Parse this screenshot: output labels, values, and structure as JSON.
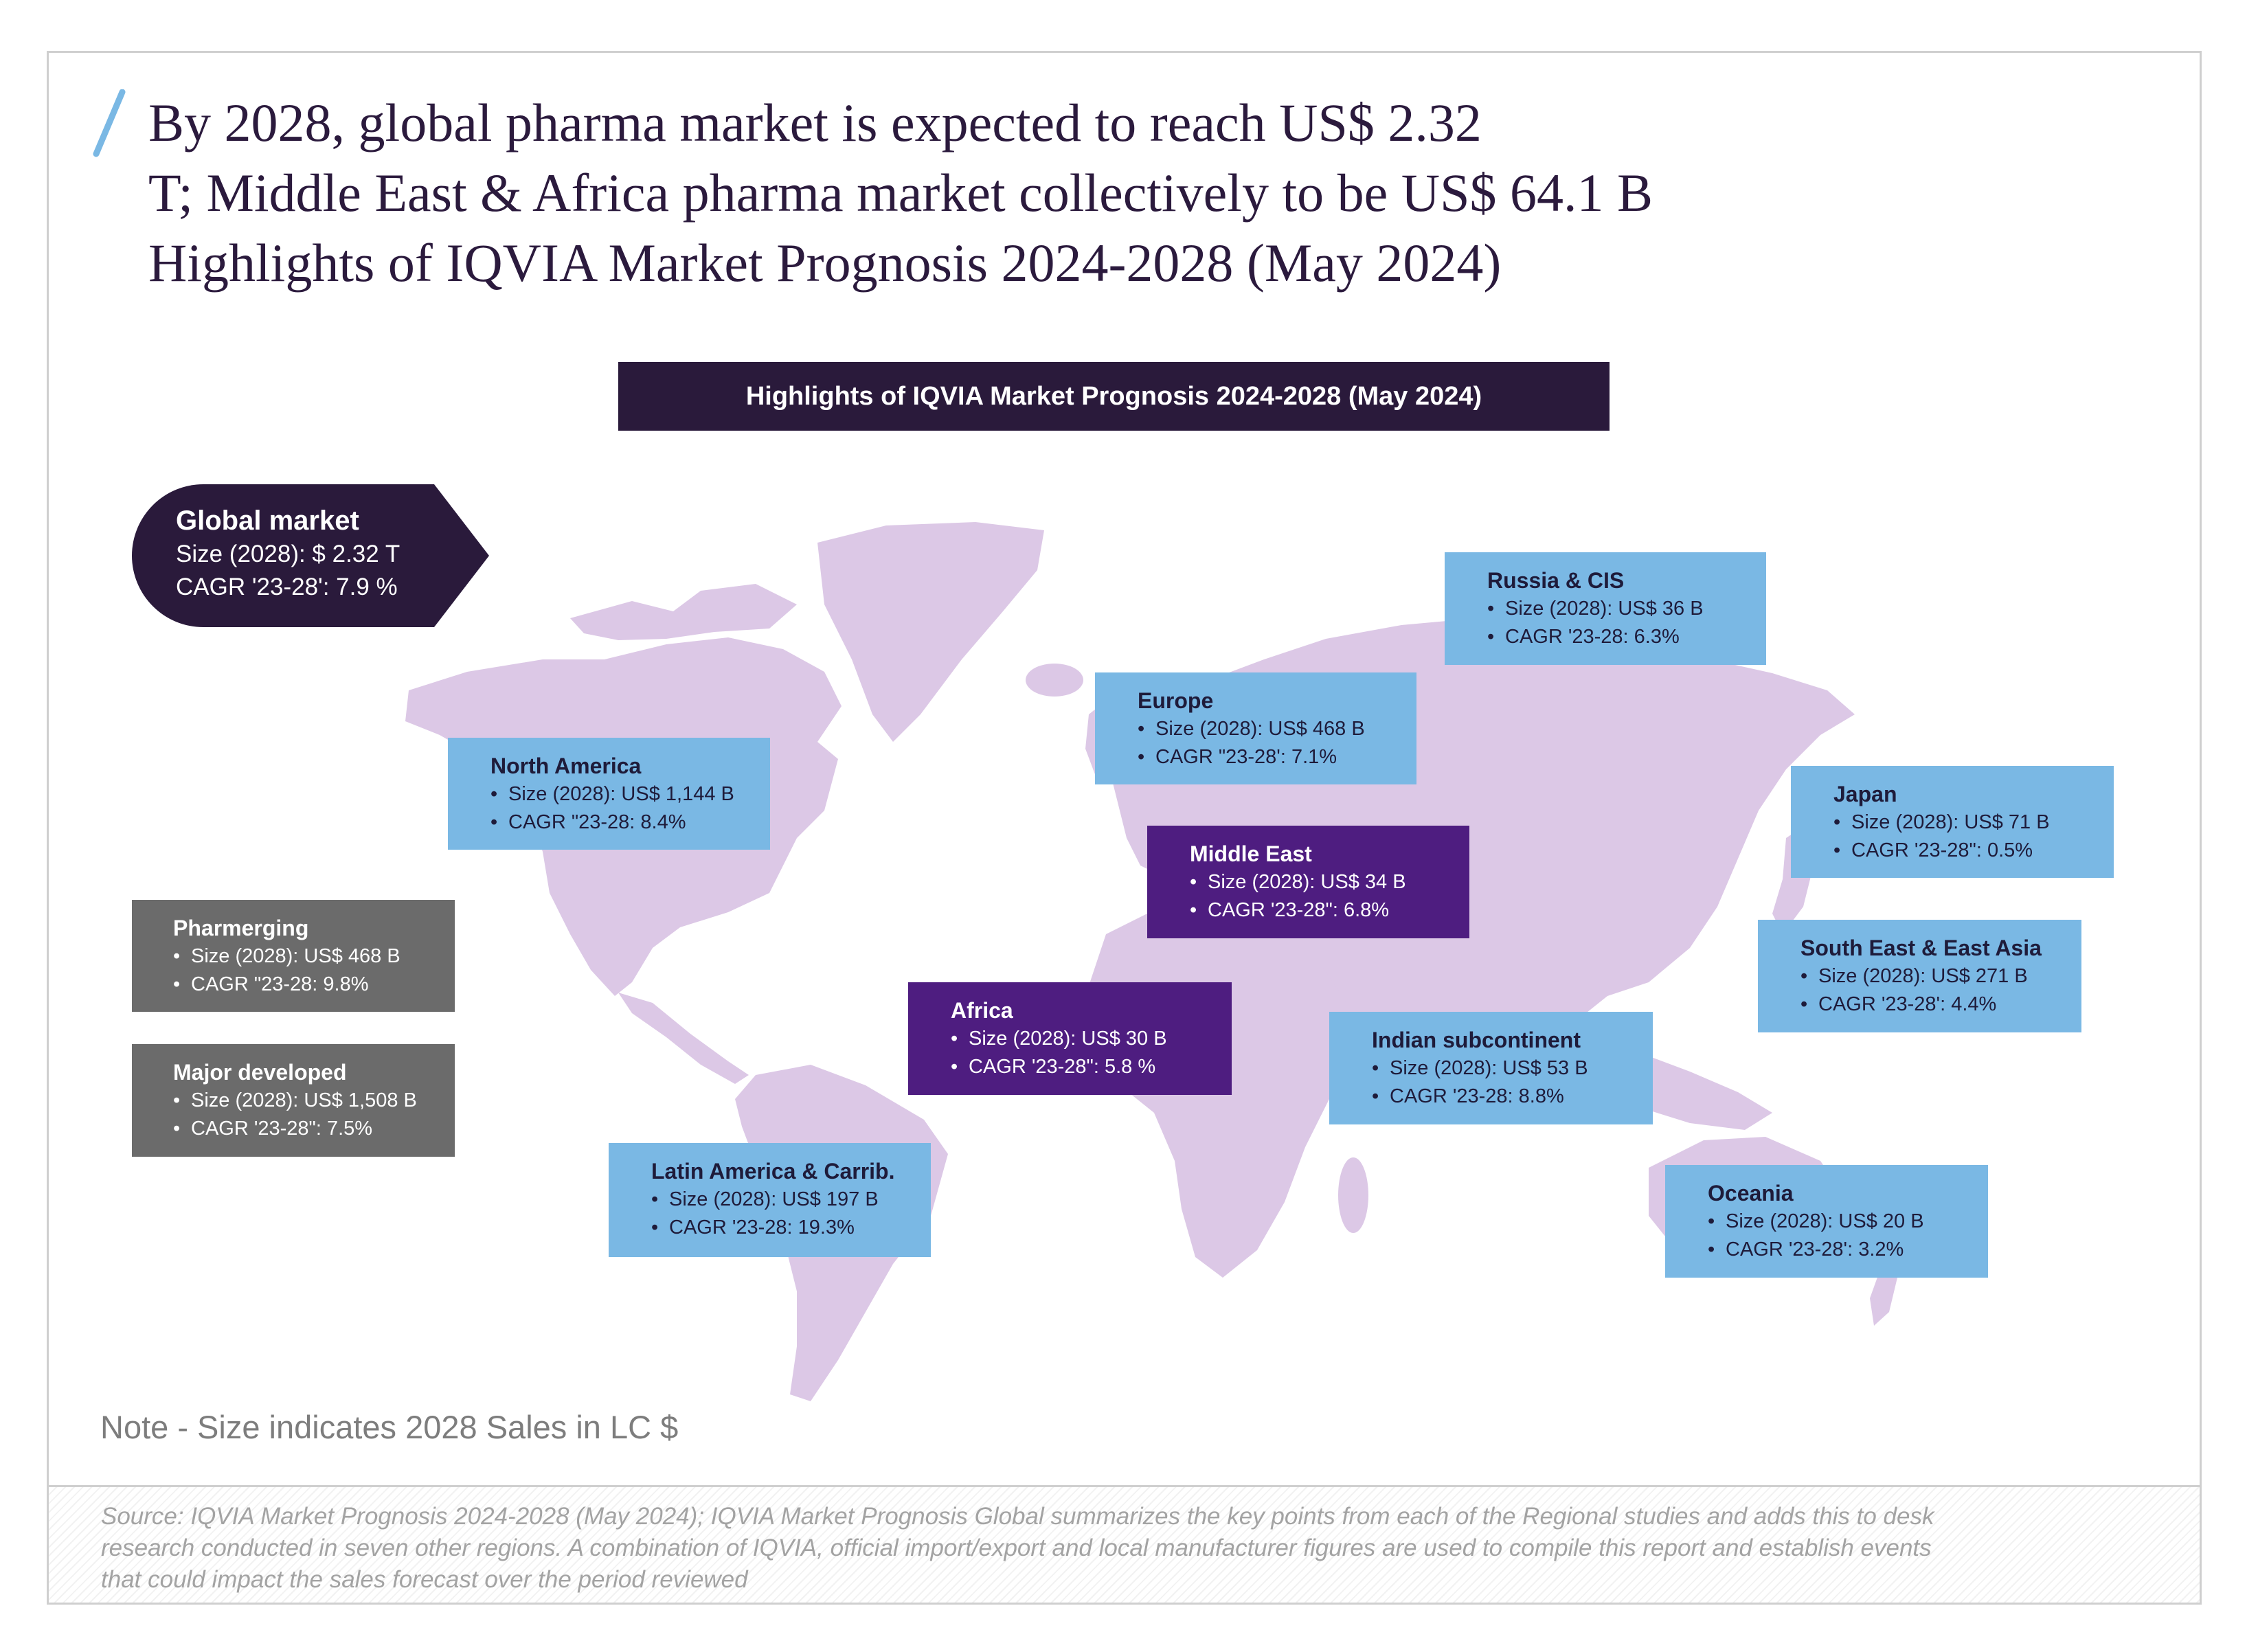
{
  "title": {
    "line1": "By 2028, global pharma market is expected to reach US$ 2.32",
    "line2": "T; Middle East & Africa pharma market collectively to be US$ 64.1 B",
    "line3": "Highlights of IQVIA Market Prognosis 2024-2028 (May 2024)"
  },
  "banner": "Highlights of IQVIA Market Prognosis 2024-2028 (May 2024)",
  "global_market": {
    "heading": "Global market",
    "size": "Size (2028): $ 2.32 T",
    "cagr": "CAGR '23-28': 7.9 %"
  },
  "regions": {
    "russia": {
      "name": "Russia & CIS",
      "size": "Size (2028): US$ 36 B",
      "cagr": "CAGR '23-28: 6.3%"
    },
    "europe": {
      "name": "Europe",
      "size": "Size (2028): US$ 468 B",
      "cagr": "CAGR \"23-28': 7.1%"
    },
    "north_america": {
      "name": "North America",
      "size": "Size (2028): US$ 1,144 B",
      "cagr": "CAGR \"23-28: 8.4%"
    },
    "japan": {
      "name": "Japan",
      "size": "Size (2028): US$ 71 B",
      "cagr": "CAGR '23-28\": 0.5%"
    },
    "middle_east": {
      "name": "Middle East",
      "size": "Size (2028): US$ 34 B",
      "cagr": "CAGR '23-28\": 6.8%"
    },
    "south_east_asia": {
      "name": "South East & East Asia",
      "size": "Size (2028): US$ 271 B",
      "cagr": "CAGR '23-28': 4.4%"
    },
    "pharmerging": {
      "name": "Pharmerging",
      "size": "Size (2028): US$ 468 B",
      "cagr": "CAGR \"23-28: 9.8%"
    },
    "africa": {
      "name": "Africa",
      "size": "Size (2028): US$ 30 B",
      "cagr": "CAGR '23-28\": 5.8 %"
    },
    "indian": {
      "name": "Indian subcontinent",
      "size": "Size (2028): US$ 53 B",
      "cagr": "CAGR '23-28: 8.8%"
    },
    "major_developed": {
      "name": "Major developed",
      "size": "Size (2028): US$ 1,508 B",
      "cagr": "CAGR '23-28\": 7.5%"
    },
    "latin_america": {
      "name": "Latin America & Carrib.",
      "size": "Size (2028): US$ 197 B",
      "cagr": "CAGR '23-28: 19.3%"
    },
    "oceania": {
      "name": "Oceania",
      "size": "Size (2028): US$ 20 B",
      "cagr": "CAGR '23-28': 3.2%"
    }
  },
  "note": "Note - Size indicates 2028 Sales in LC $",
  "source": "Source: IQVIA Market Prognosis 2024-2028 (May 2024); IQVIA Market Prognosis Global summarizes the key points from each of the Regional studies and adds this to desk research conducted in seven other regions. A combination of IQVIA, official import/export and local manufacturer figures are used to compile this report and establish events that could impact the sales forecast over the period reviewed",
  "colors": {
    "land": "#dcc8e6",
    "title_text": "#2b1a3d",
    "dark_purple": "#2a1a3b",
    "region_blue": "#7ab8e4",
    "region_purple": "#4e1d80",
    "segment_gray": "#6b6b6b",
    "accent_slash": "#7ab8e4"
  }
}
